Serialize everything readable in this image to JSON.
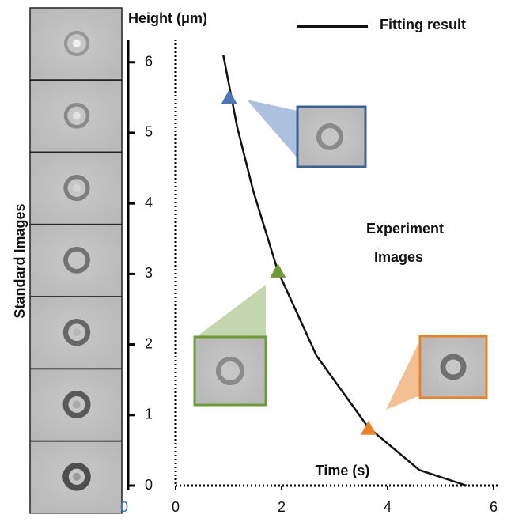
{
  "chart_data": {
    "type": "line",
    "title": "Height (μm)",
    "x_label": "Time (s)",
    "side_label": "Standard Images",
    "annotation": [
      "Experiment",
      "Images"
    ],
    "extra_labels": [
      "0"
    ],
    "xlim": [
      0,
      6
    ],
    "ylim": [
      0,
      6.3
    ],
    "xticks": [
      0,
      2,
      4,
      6
    ],
    "yticks": [
      0,
      1,
      2,
      3,
      4,
      5,
      6
    ],
    "series": [
      {
        "name": "Fitting result",
        "color": "#111111",
        "x": [
          0.9,
          1.16,
          1.46,
          1.93,
          2.66,
          3.63,
          4.6,
          5.49
        ],
        "values": [
          6.1,
          5.09,
          4.19,
          3.04,
          1.84,
          0.83,
          0.22,
          0
        ]
      }
    ],
    "points": {
      "x": [
        1.01,
        1.93,
        3.64
      ],
      "y": [
        5.5,
        3.04,
        0.81
      ],
      "colors": [
        "#4a76b8",
        "#6f9a3a",
        "#e8822a"
      ]
    }
  }
}
